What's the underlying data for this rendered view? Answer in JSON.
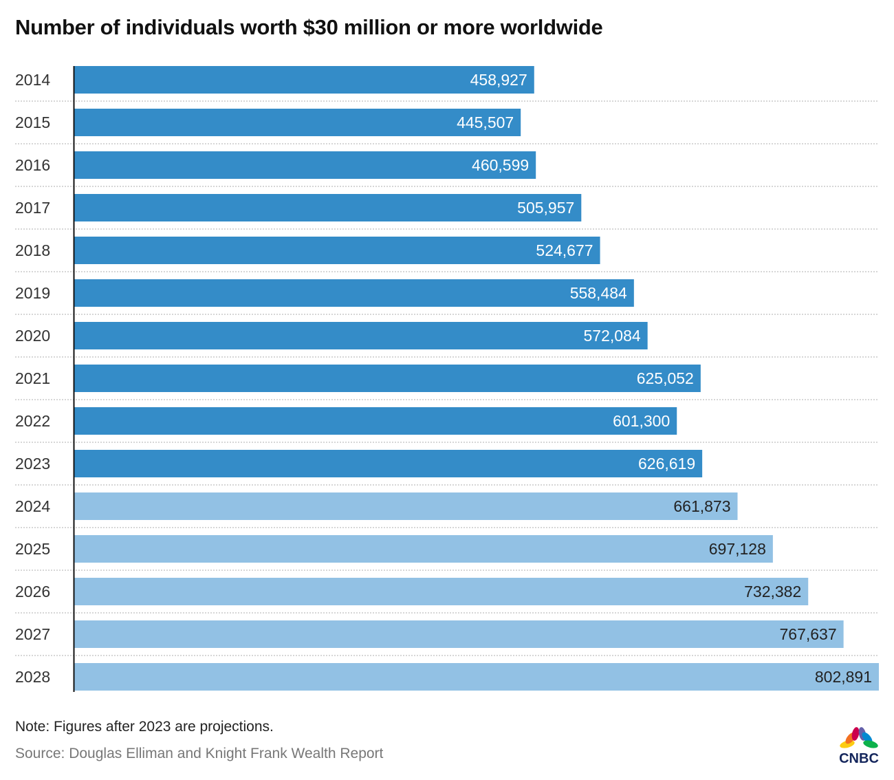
{
  "chart_data": {
    "type": "bar",
    "orientation": "horizontal",
    "title": "Number of individuals worth $30 million or more worldwide",
    "categories": [
      "2014",
      "2015",
      "2016",
      "2017",
      "2018",
      "2019",
      "2020",
      "2021",
      "2022",
      "2023",
      "2024",
      "2025",
      "2026",
      "2027",
      "2028"
    ],
    "values": [
      458927,
      445507,
      460599,
      505957,
      524677,
      558484,
      572084,
      625052,
      601300,
      626619,
      661873,
      697128,
      732382,
      767637,
      802891
    ],
    "value_labels": [
      "458,927",
      "445,507",
      "460,599",
      "505,957",
      "524,677",
      "558,484",
      "572,084",
      "625,052",
      "601,300",
      "626,619",
      "661,873",
      "697,128",
      "732,382",
      "767,637",
      "802,891"
    ],
    "projected": [
      false,
      false,
      false,
      false,
      false,
      false,
      false,
      false,
      false,
      false,
      true,
      true,
      true,
      true,
      true
    ],
    "xlim": [
      0,
      802891
    ],
    "colors": {
      "actual": "#348cc8",
      "projected": "#92c1e4"
    },
    "grid": "dotted row separators"
  },
  "note": "Note: Figures after 2023 are projections.",
  "source": "Source: Douglas Elliman and Knight Frank Wealth Report",
  "logo": {
    "text": "CNBC"
  }
}
